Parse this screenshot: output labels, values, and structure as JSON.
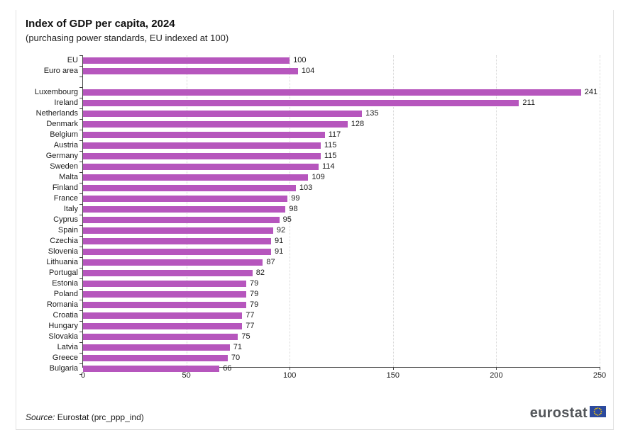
{
  "header": {
    "title": "Index of GDP per capita, 2024",
    "subtitle": "(purchasing power standards, EU indexed at 100)"
  },
  "footer": {
    "source_prefix": "Source:",
    "source_text": " Eurostat (prc_ppp_ind)",
    "logo_text": "eurostat"
  },
  "colors": {
    "bar": "#b656bd",
    "axis": "#444444",
    "gridline": "#d6d6d6",
    "logo_text": "#53565a",
    "logo_flag_blue": "#2c4a9e",
    "logo_star_yellow": "#ffcc00"
  },
  "chart_data": {
    "type": "bar",
    "orientation": "horizontal",
    "title": "Index of GDP per capita, 2024",
    "subtitle": "(purchasing power standards, EU indexed at 100)",
    "xlabel": "",
    "ylabel": "",
    "xlim": [
      0,
      250
    ],
    "xticks": [
      0,
      50,
      100,
      150,
      200,
      250
    ],
    "grid": "vertical dotted gridlines at xticks",
    "legend": "none",
    "bar_color": "#b656bd",
    "rows": [
      {
        "label": "EU",
        "value": 100
      },
      {
        "label": "Euro area",
        "value": 104
      },
      {
        "spacer": true
      },
      {
        "label": "Luxembourg",
        "value": 241
      },
      {
        "label": "Ireland",
        "value": 211
      },
      {
        "label": "Netherlands",
        "value": 135
      },
      {
        "label": "Denmark",
        "value": 128
      },
      {
        "label": "Belgium",
        "value": 117
      },
      {
        "label": "Austria",
        "value": 115
      },
      {
        "label": "Germany",
        "value": 115
      },
      {
        "label": "Sweden",
        "value": 114
      },
      {
        "label": "Malta",
        "value": 109
      },
      {
        "label": "Finland",
        "value": 103
      },
      {
        "label": "France",
        "value": 99
      },
      {
        "label": "Italy",
        "value": 98
      },
      {
        "label": "Cyprus",
        "value": 95
      },
      {
        "label": "Spain",
        "value": 92
      },
      {
        "label": "Czechia",
        "value": 91
      },
      {
        "label": "Slovenia",
        "value": 91
      },
      {
        "label": "Lithuania",
        "value": 87
      },
      {
        "label": "Portugal",
        "value": 82
      },
      {
        "label": "Estonia",
        "value": 79
      },
      {
        "label": "Poland",
        "value": 79
      },
      {
        "label": "Romania",
        "value": 79
      },
      {
        "label": "Croatia",
        "value": 77
      },
      {
        "label": "Hungary",
        "value": 77
      },
      {
        "label": "Slovakia",
        "value": 75
      },
      {
        "label": "Latvia",
        "value": 71
      },
      {
        "label": "Greece",
        "value": 70
      },
      {
        "label": "Bulgaria",
        "value": 66
      }
    ]
  }
}
